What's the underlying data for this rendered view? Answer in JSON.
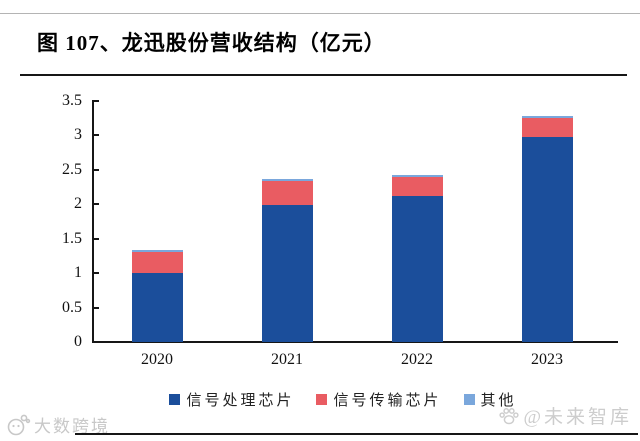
{
  "page": {
    "title": "图 107、龙迅股份营收结构（亿元）"
  },
  "watermarks": {
    "bottom_left": "大数跨境",
    "bottom_right": "@未来智库"
  },
  "chart_data": {
    "type": "bar",
    "stacked": true,
    "title": "图 107、龙迅股份营收结构（亿元）",
    "unit": "亿元",
    "categories": [
      "2020",
      "2021",
      "2022",
      "2023"
    ],
    "series": [
      {
        "name": "信号处理芯片",
        "color": "#1b4e9b",
        "values": [
          1.0,
          1.99,
          2.12,
          2.97
        ]
      },
      {
        "name": "信号传输芯片",
        "color": "#e95c62",
        "values": [
          0.3,
          0.34,
          0.27,
          0.28
        ]
      },
      {
        "name": "其他",
        "color": "#7aa7dc",
        "values": [
          0.04,
          0.03,
          0.03,
          0.02
        ]
      }
    ],
    "totals": [
      1.34,
      2.36,
      2.42,
      3.27
    ],
    "ylim": [
      0,
      3.5
    ],
    "ytick_step": 0.5,
    "yticks": [
      "0",
      "0.5",
      "1",
      "1.5",
      "2",
      "2.5",
      "3",
      "3.5"
    ],
    "grid": false,
    "legend_position": "bottom",
    "axis_color": "#161616"
  }
}
